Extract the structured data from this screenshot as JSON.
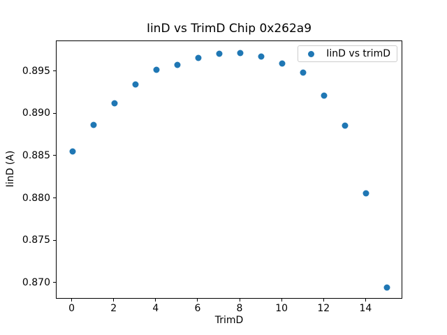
{
  "figure": {
    "background": "#ffffff",
    "spine_color": "#000000"
  },
  "chart_data": {
    "type": "scatter",
    "title": "IinD vs TrimD Chip 0x262a9",
    "xlabel": "TrimD",
    "ylabel": "IinD (A)",
    "legend": {
      "label": "IinD vs trimD",
      "position": "upper right",
      "marker": "circle"
    },
    "marker_color": "#1f77b4",
    "grid": false,
    "x": [
      0,
      1,
      2,
      3,
      4,
      5,
      6,
      7,
      8,
      9,
      10,
      11,
      12,
      13,
      14,
      15
    ],
    "y": [
      0.8856,
      0.8887,
      0.8913,
      0.8935,
      0.8952,
      0.8958,
      0.8966,
      0.8971,
      0.8972,
      0.8968,
      0.896,
      0.8949,
      0.8922,
      0.8886,
      0.8806,
      0.8695
    ],
    "xlim": [
      -0.75,
      15.75
    ],
    "ylim": [
      0.8681,
      0.8986
    ],
    "xticks": [
      0,
      2,
      4,
      6,
      8,
      10,
      12,
      14
    ],
    "ytick_labels": [
      "0.870",
      "0.875",
      "0.880",
      "0.885",
      "0.890",
      "0.895"
    ]
  }
}
